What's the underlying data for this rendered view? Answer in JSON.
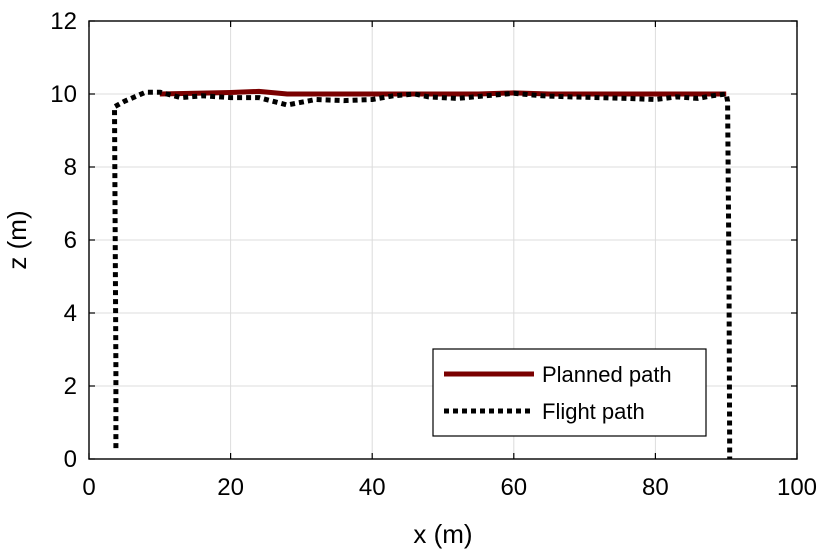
{
  "chart_data": {
    "type": "line",
    "title": "",
    "xlabel": "x (m)",
    "ylabel": "z (m)",
    "xlim": [
      0,
      100
    ],
    "ylim": [
      0,
      12
    ],
    "xticks": [
      0,
      20,
      40,
      60,
      80,
      100
    ],
    "yticks": [
      0,
      2,
      4,
      6,
      8,
      10,
      12
    ],
    "grid": true,
    "legend_position": "bottom-right",
    "series": [
      {
        "name": "Planned path",
        "color": "#7a0000",
        "style": "solid",
        "points": [
          [
            10,
            10.0
          ],
          [
            15,
            10.02
          ],
          [
            20,
            10.04
          ],
          [
            24,
            10.07
          ],
          [
            28,
            10.0
          ],
          [
            35,
            10.0
          ],
          [
            45,
            10.0
          ],
          [
            55,
            10.0
          ],
          [
            60,
            10.03
          ],
          [
            65,
            10.0
          ],
          [
            75,
            10.0
          ],
          [
            85,
            10.0
          ],
          [
            90,
            10.0
          ]
        ]
      },
      {
        "name": "Flight path",
        "color": "#000000",
        "style": "dotted",
        "points": [
          [
            3.8,
            0.3
          ],
          [
            3.8,
            2.5
          ],
          [
            3.6,
            9.65
          ],
          [
            5,
            9.8
          ],
          [
            8,
            10.05
          ],
          [
            10,
            10.05
          ],
          [
            13,
            9.9
          ],
          [
            16,
            9.95
          ],
          [
            20,
            9.9
          ],
          [
            24,
            9.9
          ],
          [
            28,
            9.7
          ],
          [
            32,
            9.85
          ],
          [
            36,
            9.82
          ],
          [
            40,
            9.85
          ],
          [
            43,
            9.95
          ],
          [
            46,
            10.0
          ],
          [
            48,
            9.92
          ],
          [
            52,
            9.88
          ],
          [
            56,
            9.95
          ],
          [
            60,
            10.02
          ],
          [
            64,
            9.95
          ],
          [
            68,
            9.92
          ],
          [
            72,
            9.9
          ],
          [
            76,
            9.88
          ],
          [
            80,
            9.85
          ],
          [
            83,
            9.92
          ],
          [
            86,
            9.88
          ],
          [
            88,
            9.95
          ],
          [
            90,
            10.0
          ],
          [
            90.2,
            9.8
          ],
          [
            90.4,
            5.0
          ],
          [
            90.5,
            0.0
          ]
        ]
      }
    ]
  }
}
